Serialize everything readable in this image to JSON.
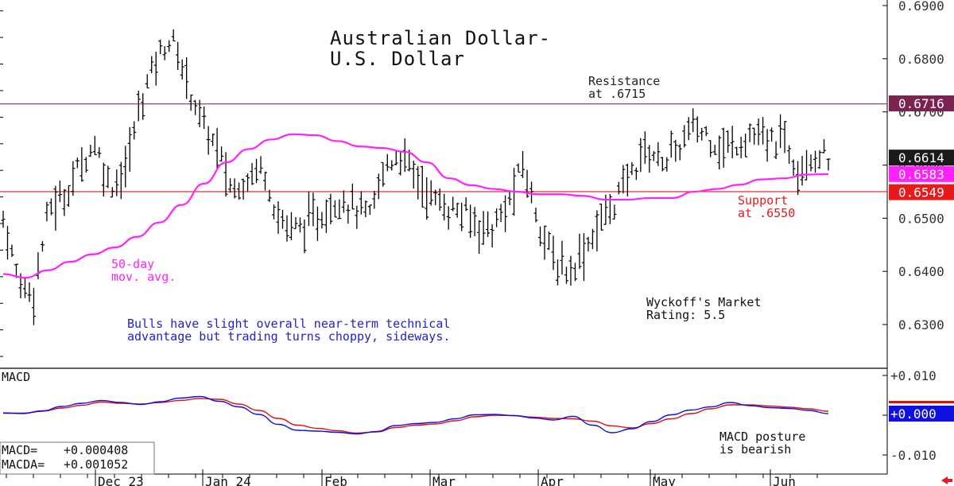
{
  "chart_data": [
    {
      "type": "bar",
      "subtype": "ohlc-daily",
      "title": [
        "Australian Dollar-",
        "U.S. Dollar"
      ],
      "ylim": [
        0.62,
        0.69
      ],
      "y_ticks": [
        "0.6900",
        "0.6800",
        "0.6700",
        "0.6600",
        "0.6500",
        "0.6400",
        "0.6300"
      ],
      "x_ticks": [
        "Dec 23",
        "Jan 24",
        "Feb",
        "Mar",
        "Apr",
        "May",
        "Jun"
      ],
      "price_labels": [
        {
          "text": "0.6716",
          "value": 0.6716,
          "color": "#7a2350"
        },
        {
          "text": "0.6614",
          "value": 0.6614,
          "color": "#1a1a1a"
        },
        {
          "text": "0.6583",
          "value": 0.6583,
          "color": "#ff22ff"
        },
        {
          "text": "0.6549",
          "value": 0.6549,
          "color": "#e8191b"
        }
      ],
      "resistance": {
        "value": 0.6715,
        "label": [
          "Resistance",
          "at .6715"
        ],
        "color": "#a2455c"
      },
      "support": {
        "value": 0.655,
        "label": [
          "Support",
          "at .6550"
        ],
        "color": "#e8191b"
      },
      "moving_average": {
        "label": [
          "50-day",
          "mov. avg."
        ],
        "color": "#ff22ff",
        "values": [
          0.6395,
          0.6388,
          0.6402,
          0.6418,
          0.6432,
          0.6445,
          0.6465,
          0.6492,
          0.6525,
          0.6565,
          0.6605,
          0.663,
          0.6648,
          0.6658,
          0.6656,
          0.6645,
          0.6635,
          0.6632,
          0.6625,
          0.6605,
          0.6575,
          0.6562,
          0.6555,
          0.655,
          0.6545,
          0.6545,
          0.6542,
          0.6535,
          0.6535,
          0.6538,
          0.6538,
          0.655,
          0.6555,
          0.6563,
          0.6573,
          0.6575,
          0.6582,
          0.6583
        ]
      },
      "price_path": [
        0.65,
        0.638,
        0.636,
        0.652,
        0.654,
        0.66,
        0.664,
        0.656,
        0.659,
        0.672,
        0.68,
        0.684,
        0.676,
        0.668,
        0.663,
        0.655,
        0.658,
        0.66,
        0.65,
        0.648,
        0.649,
        0.651,
        0.654,
        0.652,
        0.65,
        0.66,
        0.662,
        0.658,
        0.654,
        0.652,
        0.651,
        0.649,
        0.648,
        0.652,
        0.66,
        0.65,
        0.642,
        0.64,
        0.644,
        0.649,
        0.653,
        0.658,
        0.663,
        0.661,
        0.662,
        0.667,
        0.666,
        0.663,
        0.664,
        0.666,
        0.664,
        0.665,
        0.66,
        0.662,
        0.6614
      ],
      "annotations": [
        {
          "lines": [
            "Bulls have slight overall near-term technical",
            "advantage but trading turns choppy, sideways."
          ],
          "color": "#2222cc"
        },
        {
          "lines": [
            "Wyckoff's Market",
            "Rating: 5.5"
          ],
          "color": "#111111"
        }
      ]
    },
    {
      "type": "line",
      "title": "MACD",
      "ylim": [
        -0.012,
        0.012
      ],
      "y_ticks": [
        "+0.010",
        "+0.000",
        "-0.010"
      ],
      "series": [
        {
          "name": "MACD",
          "color": "#1010e0",
          "values": [
            0.0005,
            0.0005,
            0.0011,
            0.0022,
            0.003,
            0.0037,
            0.0032,
            0.0027,
            0.0034,
            0.0043,
            0.0047,
            0.0035,
            0.0021,
            0.0002,
            -0.0023,
            -0.0038,
            -0.004,
            -0.0043,
            -0.0047,
            -0.0041,
            -0.0026,
            -0.0021,
            -0.0018,
            -0.0009,
            0.0001,
            0.0002,
            -0.0001,
            -0.0007,
            -0.0012,
            -0.0003,
            -0.0025,
            -0.0044,
            -0.0034,
            -0.0016,
            0.0001,
            0.0013,
            0.0021,
            0.0032,
            0.0024,
            0.0019,
            0.0017,
            0.0012,
            0.0004
          ]
        },
        {
          "name": "MACDA",
          "color": "#e01010",
          "values": [
            0.0006,
            0.0004,
            0.001,
            0.0018,
            0.0025,
            0.0033,
            0.003,
            0.0028,
            0.0032,
            0.0037,
            0.0042,
            0.004,
            0.0028,
            0.0012,
            -0.0008,
            -0.0025,
            -0.0033,
            -0.0039,
            -0.0045,
            -0.0042,
            -0.0031,
            -0.0025,
            -0.0022,
            -0.0014,
            -0.0004,
            0.0,
            -0.0001,
            -0.0005,
            -0.0008,
            -0.0009,
            -0.0015,
            -0.0027,
            -0.0032,
            -0.0021,
            -0.0009,
            0.0004,
            0.0016,
            0.0026,
            0.0026,
            0.0023,
            0.002,
            0.0016,
            0.001
          ]
        }
      ],
      "readouts": [
        {
          "label": "MACD=",
          "value": "+0.000408"
        },
        {
          "label": "MACDA=",
          "value": "+0.001052"
        }
      ],
      "current_label": {
        "text": "+0.000",
        "color": "#1010e0"
      },
      "annotation": {
        "lines": [
          "MACD posture",
          "is bearish"
        ],
        "color": "#111111"
      }
    }
  ],
  "nav": {
    "back_icon": "left-arrow-icon",
    "color": "#e8191b"
  }
}
